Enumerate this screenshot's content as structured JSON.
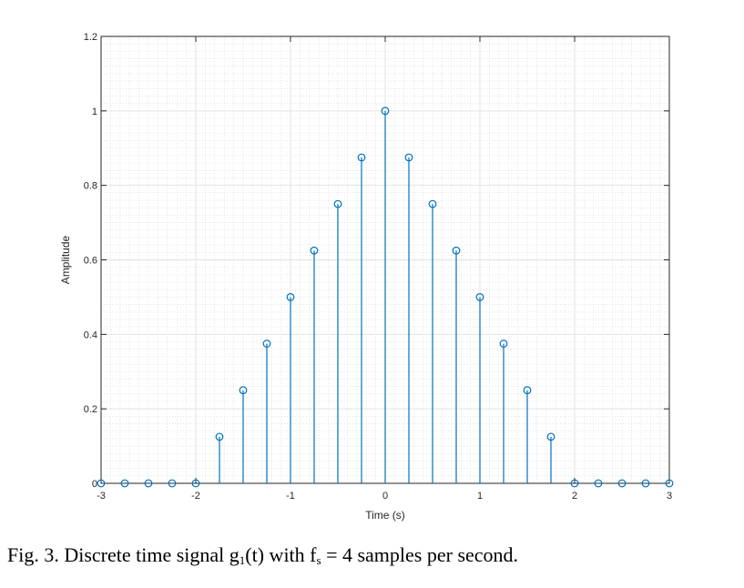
{
  "chart_data": {
    "type": "stem",
    "xlabel": "Time (s)",
    "ylabel": "Amplitude",
    "xlim": [
      -3,
      3
    ],
    "ylim": [
      0,
      1.2
    ],
    "xticks": [
      -3,
      -2,
      -1,
      0,
      1,
      2,
      3
    ],
    "yticks": [
      0,
      0.2,
      0.4,
      0.6,
      0.8,
      1,
      1.2
    ],
    "xtick_labels": [
      "-3",
      "-2",
      "-1",
      "0",
      "1",
      "2",
      "3"
    ],
    "ytick_labels": [
      "0",
      "0.2",
      "0.4",
      "0.6",
      "0.8",
      "1",
      "1.2"
    ],
    "grid": "major and minor",
    "color": "#0072BD",
    "x": [
      -3,
      -2.75,
      -2.5,
      -2.25,
      -2,
      -1.75,
      -1.5,
      -1.25,
      -1,
      -0.75,
      -0.5,
      -0.25,
      0,
      0.25,
      0.5,
      0.75,
      1,
      1.25,
      1.5,
      1.75,
      2,
      2.25,
      2.5,
      2.75,
      3
    ],
    "y": [
      0,
      0,
      0,
      0,
      0,
      0.125,
      0.25,
      0.375,
      0.5,
      0.625,
      0.75,
      0.875,
      1,
      0.875,
      0.75,
      0.625,
      0.5,
      0.375,
      0.25,
      0.125,
      0,
      0,
      0,
      0,
      0
    ]
  },
  "caption": {
    "prefix": "Fig.  3. Discrete time signal g",
    "sub1": "1",
    "mid": "(t) with f",
    "sub2": "s",
    "suffix": " = 4 samples per second."
  }
}
